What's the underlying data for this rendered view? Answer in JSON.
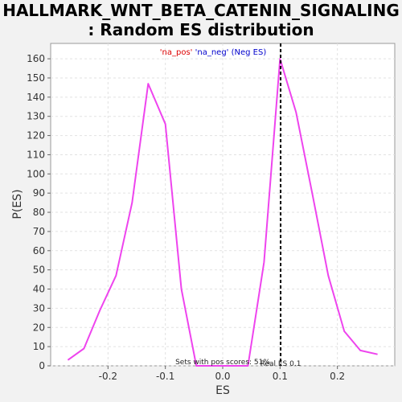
{
  "chart_data": {
    "type": "line",
    "title_lines": [
      "HALLMARK_WNT_BETA_CATENIN_SIGNALING",
      ": Random ES distribution"
    ],
    "xlabel": "ES",
    "ylabel": "P(ES)",
    "xlim": [
      -0.3,
      0.3
    ],
    "ylim": [
      0,
      168
    ],
    "xticks": [
      -0.2,
      -0.1,
      0.0,
      0.1,
      0.2
    ],
    "xtick_labels": [
      "-0.2",
      "-0.1",
      "0.0",
      "0.1",
      "0.2"
    ],
    "yticks": [
      0,
      10,
      20,
      30,
      40,
      50,
      60,
      70,
      80,
      90,
      100,
      110,
      120,
      130,
      140,
      150,
      160
    ],
    "grid": true,
    "series": [
      {
        "color": "#ee44ee",
        "x": [
          -0.27,
          -0.242,
          -0.214,
          -0.186,
          -0.158,
          -0.13,
          -0.1,
          -0.072,
          -0.046,
          -0.02,
          0.01,
          0.044,
          0.072,
          0.1,
          0.128,
          0.156,
          0.184,
          0.212,
          0.24,
          0.27
        ],
        "y": [
          3,
          9,
          29,
          47,
          85,
          147,
          126,
          40,
          0,
          0,
          0,
          0,
          54,
          160,
          132,
          90,
          47,
          18,
          8,
          6
        ]
      }
    ],
    "marker_line": {
      "x": 0.101,
      "label": "Real ES 0.1",
      "color": "#000000"
    },
    "legend": {
      "placement": "top-center",
      "parts": [
        {
          "text": "'na_pos'",
          "color": "#dd0000"
        },
        {
          "text": "'na_neg' (Neg ES)",
          "color": "#0000cc"
        }
      ]
    },
    "annotation": "Sets with pos scores: 51%"
  }
}
